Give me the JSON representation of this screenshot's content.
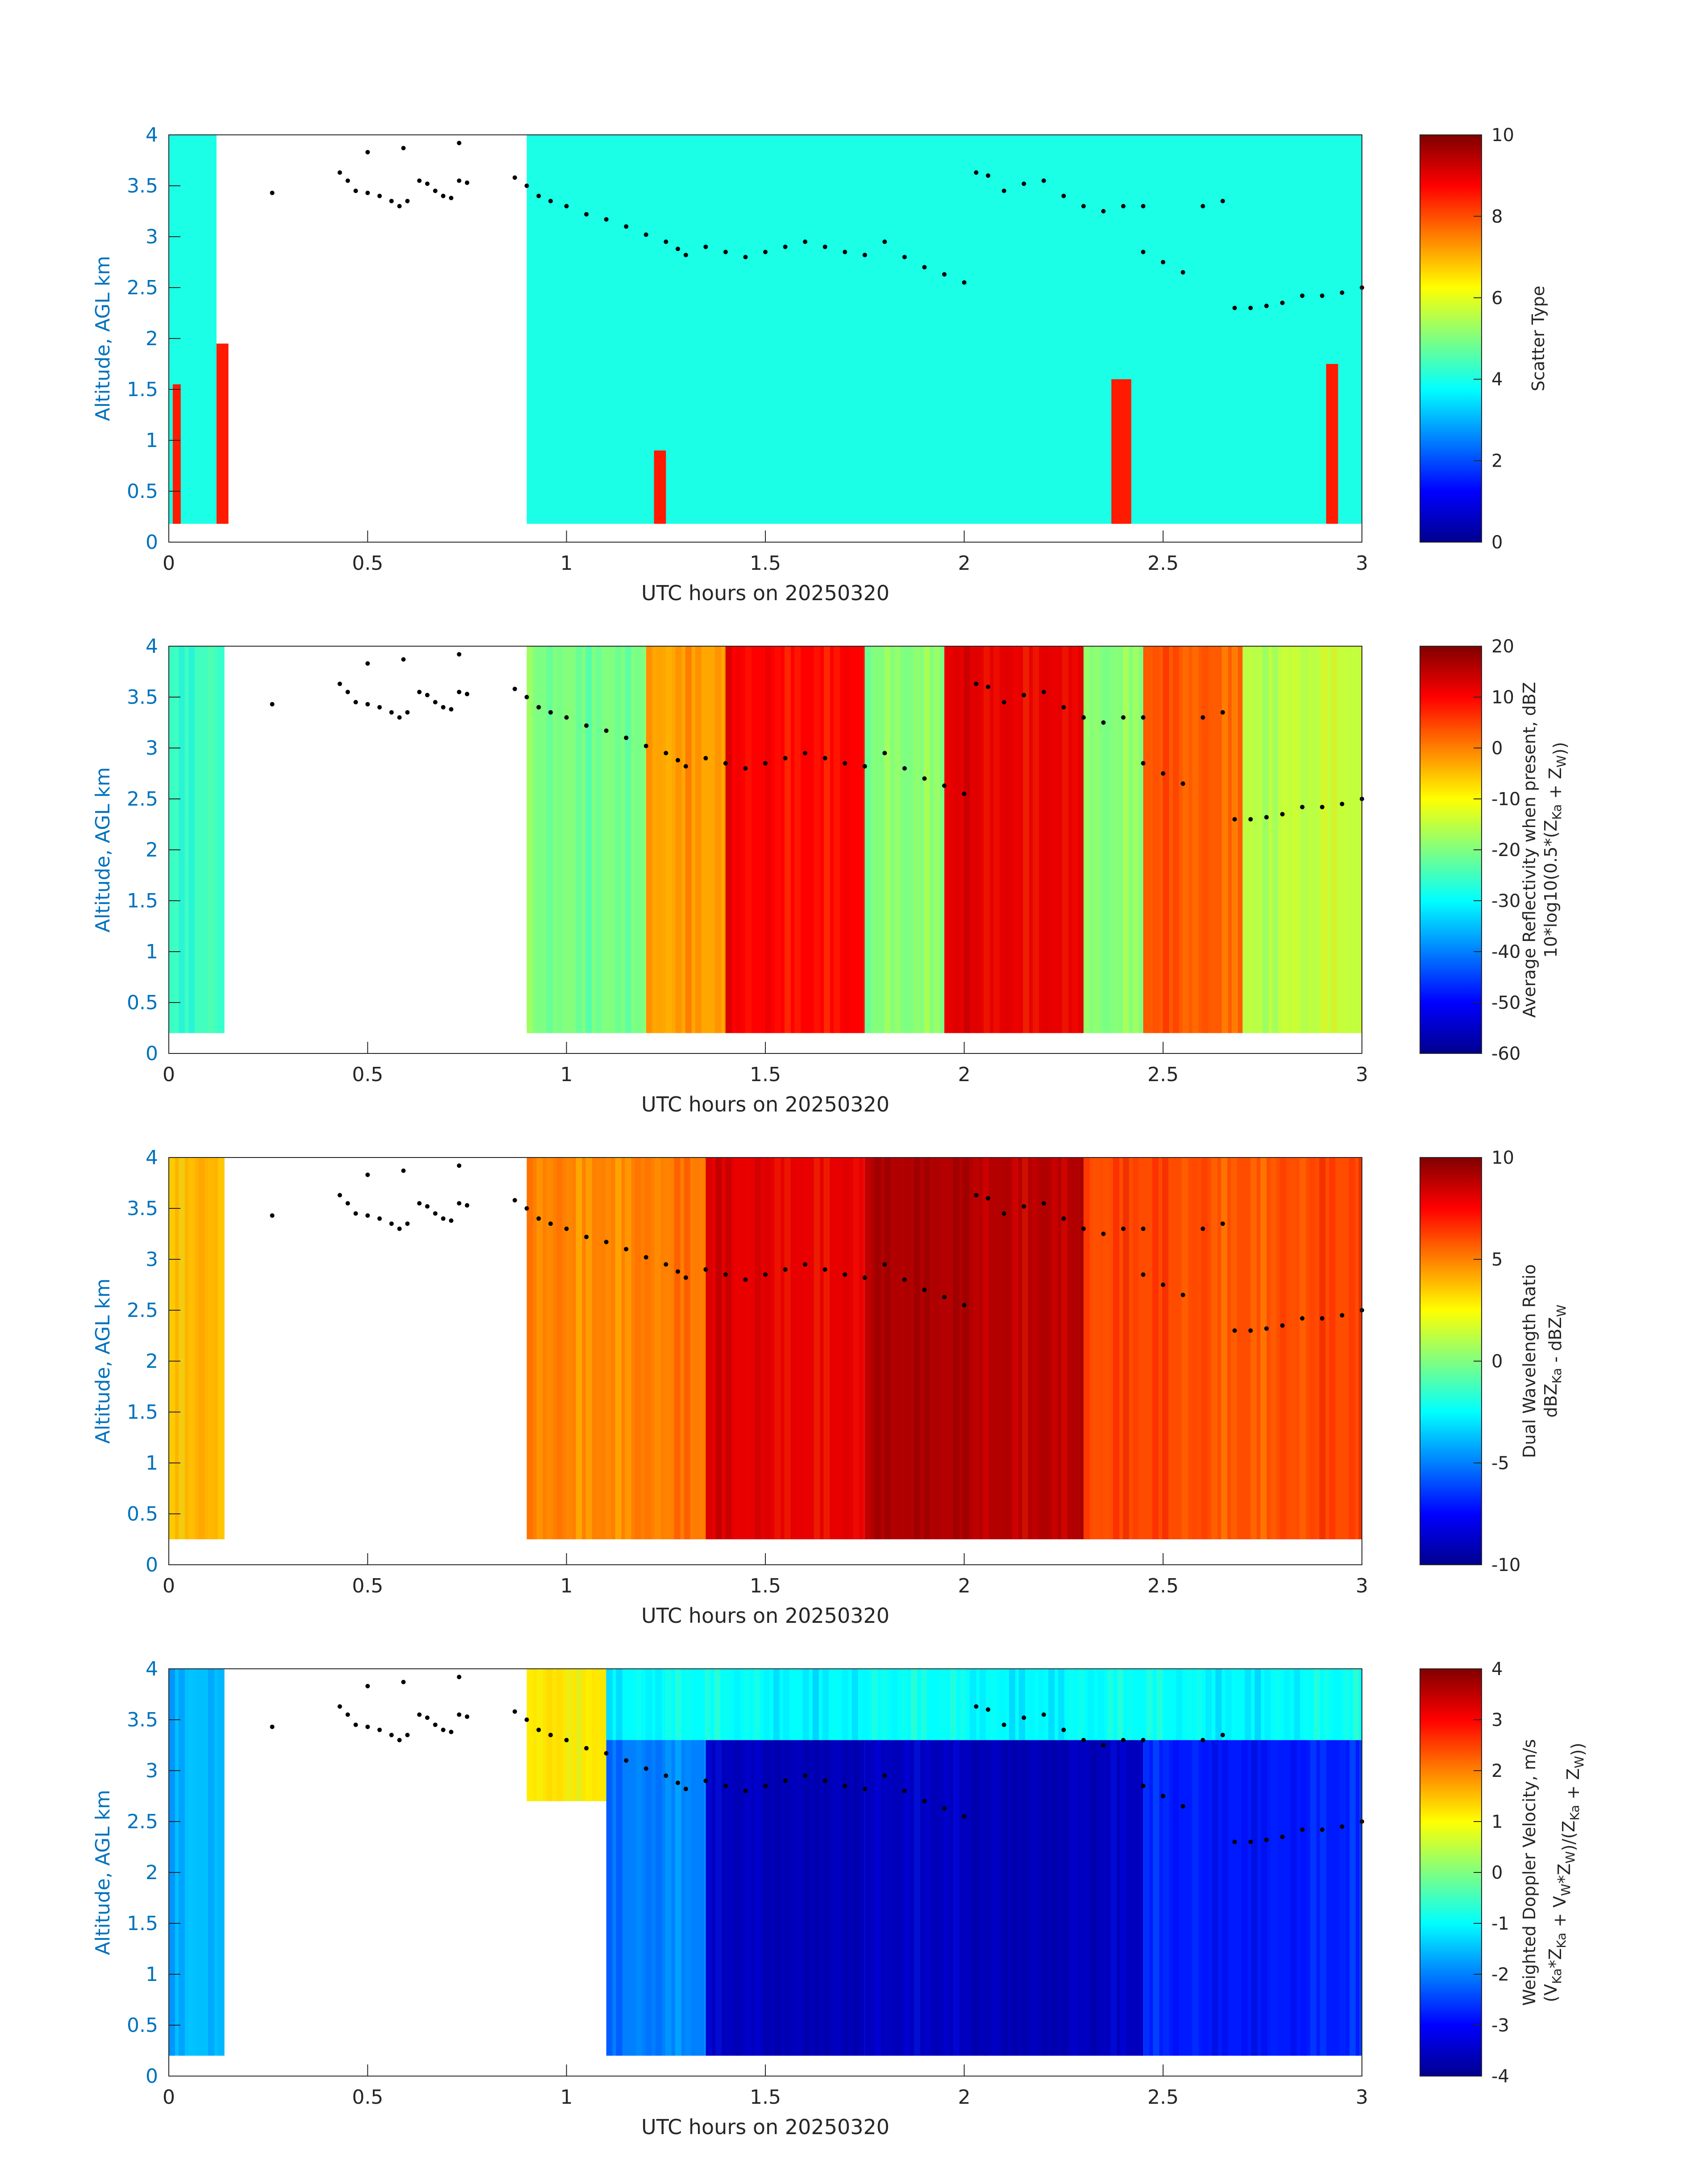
{
  "figure": {
    "xlabel": "UTC hours on 20250320",
    "ylabel": "Altitude, AGL km",
    "background": "#ffffff",
    "axis_color": "#262626",
    "yaxis_color": "#0072bd",
    "colormap": [
      "#00008f",
      "#0000ff",
      "#0080ff",
      "#00ffff",
      "#80ff80",
      "#ffff00",
      "#ff8000",
      "#ff0000",
      "#800000"
    ]
  },
  "chart_data": [
    {
      "type": "heatmap",
      "name": "scatter-type",
      "xlabel": "UTC hours on 20250320",
      "ylabel": "Altitude, AGL km",
      "xlim": [
        0,
        3
      ],
      "ylim": [
        0,
        4
      ],
      "xticks": [
        "0",
        "0.5",
        "1",
        "1.5",
        "2",
        "2.5",
        "3"
      ],
      "yticks": [
        "0",
        "0.5",
        "1",
        "1.5",
        "2",
        "2.5",
        "3",
        "3.5",
        "4"
      ],
      "colorbar": {
        "label": "Scatter Type",
        "range": [
          0,
          10
        ],
        "ticks": [
          "0",
          "2",
          "4",
          "6",
          "8",
          "10"
        ]
      },
      "fields": [
        {
          "x": [
            0.0,
            0.12
          ],
          "y": [
            0.18,
            4.0
          ],
          "value": 4
        },
        {
          "x": [
            0.9,
            3.0
          ],
          "y": [
            0.18,
            4.0
          ],
          "value": 4
        },
        {
          "x": [
            0.01,
            0.03
          ],
          "y": [
            0.18,
            1.55
          ],
          "value": 8.5
        },
        {
          "x": [
            0.12,
            0.15
          ],
          "y": [
            0.18,
            1.95
          ],
          "value": 8.5
        },
        {
          "x": [
            1.22,
            1.25
          ],
          "y": [
            0.18,
            0.9
          ],
          "value": 8.5
        },
        {
          "x": [
            2.37,
            2.42
          ],
          "y": [
            0.18,
            1.6
          ],
          "value": 8.5
        },
        {
          "x": [
            2.91,
            2.94
          ],
          "y": [
            0.18,
            1.75
          ],
          "value": 8.5
        }
      ]
    },
    {
      "type": "heatmap",
      "name": "average-reflectivity",
      "xlabel": "UTC hours on 20250320",
      "ylabel": "Altitude, AGL km",
      "xlim": [
        0,
        3
      ],
      "ylim": [
        0,
        4
      ],
      "xticks": [
        "0",
        "0.5",
        "1",
        "1.5",
        "2",
        "2.5",
        "3"
      ],
      "yticks": [
        "0",
        "0.5",
        "1",
        "1.5",
        "2",
        "2.5",
        "3",
        "3.5",
        "4"
      ],
      "colorbar": {
        "label": "Average Reflectivity when present, dBZ",
        "label2": "10*log10(0.5*(Z",
        "sub1": "Ka",
        "mid": " + Z",
        "sub2": "W",
        "end": "))",
        "range": [
          -60,
          20
        ],
        "ticks": [
          "-60",
          "-50",
          "-40",
          "-30",
          "-20",
          "-10",
          "0",
          "10",
          "20"
        ]
      },
      "fields": [
        {
          "x": [
            0.0,
            0.14
          ],
          "y": [
            0.2,
            4.0
          ],
          "value": -25
        },
        {
          "x": [
            0.9,
            1.2
          ],
          "y": [
            0.2,
            4.0
          ],
          "value": -20
        },
        {
          "x": [
            1.2,
            1.4
          ],
          "y": [
            0.2,
            4.0
          ],
          "value": -3
        },
        {
          "x": [
            1.4,
            1.75
          ],
          "y": [
            0.2,
            4.0
          ],
          "value": 10
        },
        {
          "x": [
            1.75,
            1.95
          ],
          "y": [
            0.2,
            4.0
          ],
          "value": -20
        },
        {
          "x": [
            1.95,
            2.3
          ],
          "y": [
            0.2,
            4.0
          ],
          "value": 12
        },
        {
          "x": [
            2.3,
            2.45
          ],
          "y": [
            0.2,
            4.0
          ],
          "value": -20
        },
        {
          "x": [
            2.45,
            2.7
          ],
          "y": [
            0.2,
            4.0
          ],
          "value": 3
        },
        {
          "x": [
            2.7,
            3.0
          ],
          "y": [
            0.2,
            4.0
          ],
          "value": -15
        }
      ]
    },
    {
      "type": "heatmap",
      "name": "dual-wavelength-ratio",
      "xlabel": "UTC hours on 20250320",
      "ylabel": "Altitude, AGL km",
      "xlim": [
        0,
        3
      ],
      "ylim": [
        0,
        4
      ],
      "xticks": [
        "0",
        "0.5",
        "1",
        "1.5",
        "2",
        "2.5",
        "3"
      ],
      "yticks": [
        "0",
        "0.5",
        "1",
        "1.5",
        "2",
        "2.5",
        "3",
        "3.5",
        "4"
      ],
      "colorbar": {
        "label": "Dual Wavelength Ratio",
        "label2": "dBZ",
        "sub1": "Ka",
        "mid": " - dBZ",
        "sub2": "W",
        "end": "",
        "range": [
          -10,
          10
        ],
        "ticks": [
          "-10",
          "-5",
          "0",
          "5",
          "10"
        ]
      },
      "fields": [
        {
          "x": [
            0.0,
            0.14
          ],
          "y": [
            0.25,
            4.0
          ],
          "value": 4
        },
        {
          "x": [
            0.9,
            1.35
          ],
          "y": [
            0.25,
            4.0
          ],
          "value": 5
        },
        {
          "x": [
            1.35,
            1.75
          ],
          "y": [
            0.25,
            4.0
          ],
          "value": 8
        },
        {
          "x": [
            1.75,
            2.3
          ],
          "y": [
            0.25,
            4.0
          ],
          "value": 9
        },
        {
          "x": [
            2.3,
            3.0
          ],
          "y": [
            0.25,
            4.0
          ],
          "value": 6
        }
      ]
    },
    {
      "type": "heatmap",
      "name": "weighted-doppler-velocity",
      "xlabel": "UTC hours on 20250320",
      "ylabel": "Altitude, AGL km",
      "xlim": [
        0,
        3
      ],
      "ylim": [
        0,
        4
      ],
      "xticks": [
        "0",
        "0.5",
        "1",
        "1.5",
        "2",
        "2.5",
        "3"
      ],
      "yticks": [
        "0",
        "0.5",
        "1",
        "1.5",
        "2",
        "2.5",
        "3",
        "3.5",
        "4"
      ],
      "colorbar": {
        "label": "Weighted Doppler Velocity, m/s",
        "label2": "(V",
        "sub1": "Ka",
        "mid": "*Z",
        "sub2": "Ka",
        "end": " + V",
        "sub3": "W",
        "end2": "*Z",
        "sub4": "W",
        "end3": ")/(Z",
        "sub5": "Ka",
        "end4": " + Z",
        "sub6": "W",
        "end5": "))",
        "range": [
          -4,
          4
        ],
        "ticks": [
          "-4",
          "-3",
          "-2",
          "-1",
          "0",
          "1",
          "2",
          "3",
          "4"
        ]
      },
      "fields": [
        {
          "x": [
            0.0,
            0.14
          ],
          "y": [
            0.2,
            4.0
          ],
          "value": -1.5
        },
        {
          "x": [
            0.9,
            1.1
          ],
          "y": [
            2.7,
            4.0
          ],
          "value": 1.2
        },
        {
          "x": [
            1.1,
            1.35
          ],
          "y": [
            0.2,
            4.0
          ],
          "value": -2
        },
        {
          "x": [
            1.35,
            1.75
          ],
          "y": [
            0.2,
            3.3
          ],
          "value": -3.6
        },
        {
          "x": [
            1.75,
            2.45
          ],
          "y": [
            0.2,
            3.3
          ],
          "value": -3.6
        },
        {
          "x": [
            2.45,
            3.0
          ],
          "y": [
            0.2,
            3.3
          ],
          "value": -2.8
        },
        {
          "x": [
            1.1,
            3.0
          ],
          "y": [
            3.3,
            4.0
          ],
          "value": -1
        }
      ]
    }
  ],
  "cloud_top_dots": [
    [
      0.26,
      3.43
    ],
    [
      0.43,
      3.63
    ],
    [
      0.45,
      3.55
    ],
    [
      0.47,
      3.45
    ],
    [
      0.5,
      3.43
    ],
    [
      0.53,
      3.4
    ],
    [
      0.56,
      3.35
    ],
    [
      0.58,
      3.3
    ],
    [
      0.6,
      3.35
    ],
    [
      0.63,
      3.55
    ],
    [
      0.65,
      3.52
    ],
    [
      0.67,
      3.45
    ],
    [
      0.69,
      3.4
    ],
    [
      0.71,
      3.38
    ],
    [
      0.73,
      3.55
    ],
    [
      0.75,
      3.53
    ],
    [
      0.87,
      3.58
    ],
    [
      0.9,
      3.5
    ],
    [
      0.93,
      3.4
    ],
    [
      0.96,
      3.35
    ],
    [
      1.0,
      3.3
    ],
    [
      1.05,
      3.22
    ],
    [
      1.1,
      3.17
    ],
    [
      1.15,
      3.1
    ],
    [
      1.2,
      3.02
    ],
    [
      1.25,
      2.95
    ],
    [
      1.28,
      2.88
    ],
    [
      1.3,
      2.82
    ],
    [
      1.35,
      2.9
    ],
    [
      1.4,
      2.85
    ],
    [
      1.45,
      2.8
    ],
    [
      1.5,
      2.85
    ],
    [
      1.55,
      2.9
    ],
    [
      1.6,
      2.95
    ],
    [
      1.65,
      2.9
    ],
    [
      1.7,
      2.85
    ],
    [
      1.75,
      2.82
    ],
    [
      1.8,
      2.95
    ],
    [
      1.85,
      2.8
    ],
    [
      1.9,
      2.7
    ],
    [
      1.95,
      2.63
    ],
    [
      2.0,
      2.55
    ],
    [
      2.03,
      3.63
    ],
    [
      2.06,
      3.6
    ],
    [
      2.1,
      3.45
    ],
    [
      2.15,
      3.52
    ],
    [
      2.2,
      3.55
    ],
    [
      2.25,
      3.4
    ],
    [
      2.3,
      3.3
    ],
    [
      2.35,
      3.25
    ],
    [
      2.4,
      3.3
    ],
    [
      2.45,
      3.3
    ],
    [
      2.45,
      2.85
    ],
    [
      2.5,
      2.75
    ],
    [
      2.55,
      2.65
    ],
    [
      2.6,
      3.3
    ],
    [
      2.65,
      3.35
    ],
    [
      2.68,
      2.3
    ],
    [
      2.72,
      2.3
    ],
    [
      2.76,
      2.32
    ],
    [
      2.8,
      2.35
    ],
    [
      2.85,
      2.42
    ],
    [
      2.9,
      2.42
    ],
    [
      2.95,
      2.45
    ],
    [
      3.0,
      2.5
    ],
    [
      0.5,
      3.83
    ],
    [
      0.59,
      3.87
    ],
    [
      0.73,
      3.92
    ]
  ]
}
